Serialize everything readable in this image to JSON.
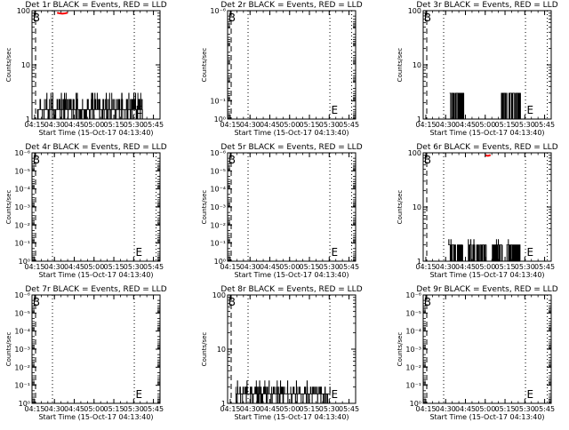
{
  "colors": {
    "events": "#000000",
    "lld": "#ff0000",
    "background": "#ffffff"
  },
  "chart_data": [
    {
      "type": "line",
      "title": "Det 1r BLACK = Events, RED = LLD",
      "xlabel": "Start Time (15-Oct-17 04:13:40)",
      "ylabel": "Counts/sec",
      "yscale": "log",
      "ylim": [
        1,
        100
      ],
      "yticks": [
        {
          "v": 1,
          "label": "1"
        },
        {
          "v": 10,
          "label": "10"
        },
        {
          "v": 100,
          "label": "100"
        }
      ],
      "xlim": [
        253,
        350
      ],
      "xticks": [
        "04:15",
        "04:30",
        "04:45",
        "05:00",
        "05:15",
        "05:30",
        "05:45"
      ],
      "xtick_minutes": [
        255,
        270,
        285,
        300,
        315,
        330,
        345
      ],
      "vlines_dotted": [
        268.5,
        330.5
      ],
      "markers": [
        {
          "text": "B",
          "x": 253.5
        },
        {
          "text": "E",
          "x": 331.5
        }
      ],
      "dashed_start": 255.7,
      "events": {
        "kind": "dense_low",
        "x": [
          257,
          337
        ],
        "base": 1.5,
        "hi": 2.3,
        "burst": 3.0
      },
      "lld": {
        "x": [
          272,
          280
        ],
        "y": 95
      }
    },
    {
      "type": "line",
      "title": "Det 2r BLACK = Events, RED = LLD",
      "xlabel": "Start Time (15-Oct-17 04:13:40)",
      "ylabel": "Counts/sec",
      "yscale": "log",
      "ylim": [
        1,
        1e-06
      ],
      "yticks": [
        {
          "v": 1,
          "label": "10⁰"
        },
        {
          "v": 0.1,
          "label": "10⁻¹"
        },
        {
          "v": 1e-06,
          "label": "10⁻⁶"
        }
      ],
      "xlim": [
        253,
        350
      ],
      "xticks": [
        "04:15",
        "04:30",
        "04:45",
        "05:00",
        "05:15",
        "05:30",
        "05:45"
      ],
      "xtick_minutes": [
        255,
        270,
        285,
        300,
        315,
        330,
        345
      ],
      "vlines_dotted": [
        268.5,
        330.5,
        347
      ],
      "markers": [
        {
          "text": "B",
          "x": 253.5
        },
        {
          "text": "E",
          "x": 331.5
        }
      ],
      "dashed_start": 255.7,
      "events": null,
      "lld": null
    },
    {
      "type": "line",
      "title": "Det 3r BLACK = Events, RED = LLD",
      "xlabel": "Start Time (15-Oct-17 04:13:40)",
      "ylabel": "Counts/sec",
      "yscale": "log",
      "ylim": [
        1,
        100
      ],
      "yticks": [
        {
          "v": 1,
          "label": "1"
        },
        {
          "v": 10,
          "label": "10"
        },
        {
          "v": 100,
          "label": "100"
        }
      ],
      "xlim": [
        253,
        350
      ],
      "xticks": [
        "04:15",
        "04:30",
        "04:45",
        "05:00",
        "05:15",
        "05:30",
        "05:45"
      ],
      "xtick_minutes": [
        255,
        270,
        285,
        300,
        315,
        330,
        345
      ],
      "vlines_dotted": [
        268.5,
        330.5,
        347
      ],
      "markers": [
        {
          "text": "B",
          "x": 253.5
        },
        {
          "text": "E",
          "x": 331.5
        }
      ],
      "dashed_start": 255.7,
      "events": {
        "kind": "sparse",
        "segments": [
          [
            273,
            284
          ],
          [
            312,
            327
          ]
        ],
        "hi": 3.0
      },
      "lld": null
    },
    {
      "type": "line",
      "title": "Det 4r BLACK = Events, RED = LLD",
      "xlabel": "Start Time (15-Oct-17 04:13:40)",
      "ylabel": "Counts/sec",
      "yscale": "log",
      "ylim": [
        1,
        1e-06
      ],
      "yticks": [
        {
          "v": 1,
          "label": "10⁰"
        },
        {
          "v": 0.1,
          "label": "10⁻¹"
        },
        {
          "v": 0.01,
          "label": "10⁻²"
        },
        {
          "v": 0.001,
          "label": "10⁻³"
        },
        {
          "v": 0.0001,
          "label": "10⁻⁴"
        },
        {
          "v": 1e-05,
          "label": "10⁻⁵"
        },
        {
          "v": 1e-06,
          "label": "10⁻⁶"
        }
      ],
      "xlim": [
        253,
        350
      ],
      "xticks": [
        "04:15",
        "04:30",
        "04:45",
        "05:00",
        "05:15",
        "05:30",
        "05:45"
      ],
      "xtick_minutes": [
        255,
        270,
        285,
        300,
        315,
        330,
        345
      ],
      "vlines_dotted": [
        268.5,
        330.5,
        347
      ],
      "markers": [
        {
          "text": "B",
          "x": 253.5
        },
        {
          "text": "E",
          "x": 331.5
        }
      ],
      "dashed_start": 255.7,
      "events": null,
      "lld": null
    },
    {
      "type": "line",
      "title": "Det 5r BLACK = Events, RED = LLD",
      "xlabel": "Start Time (15-Oct-17 04:13:40)",
      "ylabel": "Counts/sec",
      "yscale": "log",
      "ylim": [
        1,
        1e-06
      ],
      "yticks": [
        {
          "v": 1,
          "label": "10⁰"
        },
        {
          "v": 0.1,
          "label": "10⁻¹"
        },
        {
          "v": 0.01,
          "label": "10⁻²"
        },
        {
          "v": 0.001,
          "label": "10⁻³"
        },
        {
          "v": 0.0001,
          "label": "10⁻⁴"
        },
        {
          "v": 1e-05,
          "label": "10⁻⁵"
        },
        {
          "v": 1e-06,
          "label": "10⁻⁶"
        }
      ],
      "xlim": [
        253,
        350
      ],
      "xticks": [
        "04:15",
        "04:30",
        "04:45",
        "05:00",
        "05:15",
        "05:30",
        "05:45"
      ],
      "xtick_minutes": [
        255,
        270,
        285,
        300,
        315,
        330,
        345
      ],
      "vlines_dotted": [
        268.5,
        330.5,
        347
      ],
      "markers": [
        {
          "text": "B",
          "x": 253.5
        },
        {
          "text": "E",
          "x": 331.5
        }
      ],
      "dashed_start": 255.7,
      "events": null,
      "lld": null
    },
    {
      "type": "line",
      "title": "Det 6r BLACK = Events, RED = LLD",
      "xlabel": "Start Time (15-Oct-17 04:13:40)",
      "ylabel": "Counts/sec",
      "yscale": "log",
      "ylim": [
        1,
        100
      ],
      "yticks": [
        {
          "v": 1,
          "label": "1"
        },
        {
          "v": 10,
          "label": "10"
        },
        {
          "v": 100,
          "label": "100"
        }
      ],
      "xlim": [
        253,
        350
      ],
      "xticks": [
        "04:15",
        "04:30",
        "04:45",
        "05:00",
        "05:15",
        "05:30",
        "05:45"
      ],
      "xtick_minutes": [
        255,
        270,
        285,
        300,
        315,
        330,
        345
      ],
      "vlines_dotted": [
        268.5,
        330.5,
        347
      ],
      "markers": [
        {
          "text": "B",
          "x": 253.5
        },
        {
          "text": "E",
          "x": 331.5
        }
      ],
      "dashed_start": 255.7,
      "events": {
        "kind": "sparse",
        "segments": [
          [
            272,
            283
          ],
          [
            287,
            301
          ],
          [
            305,
            313
          ],
          [
            316,
            327
          ]
        ],
        "hi": 2.0,
        "burst": 2.5
      },
      "lld": {
        "x": [
          300,
          304
        ],
        "y": 95
      }
    },
    {
      "type": "line",
      "title": "Det 7r BLACK = Events, RED = LLD",
      "xlabel": "Start Time (15-Oct-17 04:13:40)",
      "ylabel": "Counts/sec",
      "yscale": "log",
      "ylim": [
        1,
        1e-06
      ],
      "yticks": [
        {
          "v": 1,
          "label": "10⁰"
        },
        {
          "v": 0.1,
          "label": "10⁻¹"
        },
        {
          "v": 0.01,
          "label": "10⁻²"
        },
        {
          "v": 0.001,
          "label": "10⁻³"
        },
        {
          "v": 0.0001,
          "label": "10⁻⁴"
        },
        {
          "v": 1e-05,
          "label": "10⁻⁵"
        },
        {
          "v": 1e-06,
          "label": "10⁻⁶"
        }
      ],
      "xlim": [
        253,
        350
      ],
      "xticks": [
        "04:15",
        "04:30",
        "04:45",
        "05:00",
        "05:15",
        "05:30",
        "05:45"
      ],
      "xtick_minutes": [
        255,
        270,
        285,
        300,
        315,
        330,
        345
      ],
      "vlines_dotted": [
        268.5,
        330.5
      ],
      "markers": [
        {
          "text": "B",
          "x": 253.5
        },
        {
          "text": "E",
          "x": 331.5
        }
      ],
      "dashed_start": 255.7,
      "events": null,
      "lld": null
    },
    {
      "type": "line",
      "title": "Det 8r BLACK = Events, RED = LLD",
      "xlabel": "Start Time (15-Oct-17 04:13:40)",
      "ylabel": "Counts/sec",
      "yscale": "log",
      "ylim": [
        1,
        100
      ],
      "yticks": [
        {
          "v": 1,
          "label": "1"
        },
        {
          "v": 10,
          "label": "10"
        },
        {
          "v": 100,
          "label": "100"
        }
      ],
      "xlim": [
        253,
        350
      ],
      "xticks": [
        "04:15",
        "04:30",
        "04:45",
        "05:00",
        "05:15",
        "05:30",
        "05:45"
      ],
      "xtick_minutes": [
        255,
        270,
        285,
        300,
        315,
        330,
        345
      ],
      "vlines_dotted": [
        268.5,
        330.5
      ],
      "markers": [
        {
          "text": "B",
          "x": 253.5
        },
        {
          "text": "E",
          "x": 331.5
        }
      ],
      "dashed_start": 255.7,
      "events": {
        "kind": "dense_low",
        "x": [
          259,
          331
        ],
        "base": 1.5,
        "hi": 2.0,
        "burst": 2.6
      },
      "lld": null
    },
    {
      "type": "line",
      "title": "Det 9r BLACK = Events, RED = LLD",
      "xlabel": "Start Time (15-Oct-17 04:13:40)",
      "ylabel": "Counts/sec",
      "yscale": "log",
      "ylim": [
        1,
        1e-06
      ],
      "yticks": [
        {
          "v": 1,
          "label": "10⁰"
        },
        {
          "v": 0.1,
          "label": "10⁻¹"
        },
        {
          "v": 0.01,
          "label": "10⁻²"
        },
        {
          "v": 0.001,
          "label": "10⁻³"
        },
        {
          "v": 0.0001,
          "label": "10⁻⁴"
        },
        {
          "v": 1e-05,
          "label": "10⁻⁵"
        },
        {
          "v": 1e-06,
          "label": "10⁻⁶"
        }
      ],
      "xlim": [
        253,
        350
      ],
      "xticks": [
        "04:15",
        "04:30",
        "04:45",
        "05:00",
        "05:15",
        "05:30",
        "05:45"
      ],
      "xtick_minutes": [
        255,
        270,
        285,
        300,
        315,
        330,
        345
      ],
      "vlines_dotted": [
        268.5,
        330.5,
        347
      ],
      "markers": [
        {
          "text": "B",
          "x": 253.5
        },
        {
          "text": "E",
          "x": 331.5
        }
      ],
      "dashed_start": 255.7,
      "events": null,
      "lld": null
    }
  ]
}
